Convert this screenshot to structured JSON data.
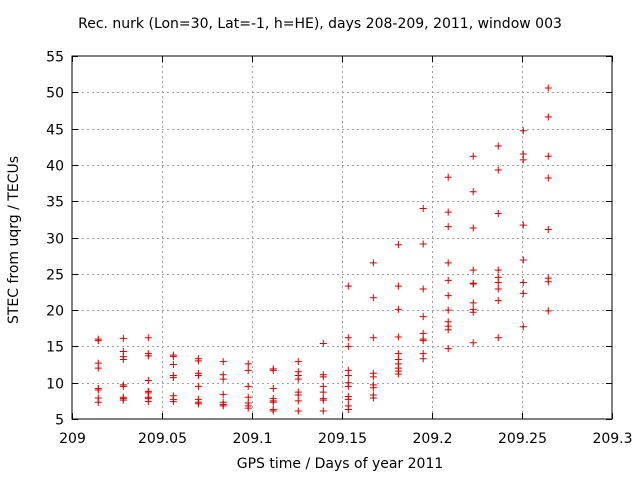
{
  "chart_data": {
    "type": "scatter",
    "title": "Rec. nurk (Lon=30, Lat=-1, h=HE), days 208-209, 2011, window 003",
    "xlabel": "GPS time / Days of year 2011",
    "ylabel": "STEC from uqrg / TECUs",
    "xlim": [
      209,
      209.3
    ],
    "ylim": [
      5,
      55
    ],
    "xticks": [
      "209",
      "209.05",
      "209.1",
      "209.15",
      "209.2",
      "209.25",
      "209.3"
    ],
    "xtick_values": [
      209,
      209.05,
      209.1,
      209.15,
      209.2,
      209.25,
      209.3
    ],
    "yticks": [
      "5",
      "10",
      "15",
      "20",
      "25",
      "30",
      "35",
      "40",
      "45",
      "50",
      "55"
    ],
    "ytick_values": [
      5,
      10,
      15,
      20,
      25,
      30,
      35,
      40,
      45,
      50,
      55
    ],
    "grid": true,
    "marker": "+",
    "color": "#d40000",
    "columns": [
      {
        "x": 209.0146,
        "y": [
          16.0,
          15.8,
          12.7,
          12.0,
          9.2,
          9.0,
          7.9,
          7.3
        ]
      },
      {
        "x": 209.0285,
        "y": [
          16.1,
          14.3,
          13.6,
          13.2,
          9.7,
          9.5,
          8.0,
          7.8,
          7.6
        ]
      },
      {
        "x": 209.0424,
        "y": [
          16.2,
          14.0,
          13.7,
          10.3,
          8.8,
          8.6,
          8.0,
          7.8,
          7.4
        ]
      },
      {
        "x": 209.0563,
        "y": [
          13.8,
          13.6,
          12.5,
          11.0,
          10.7,
          8.2,
          7.7,
          7.4
        ]
      },
      {
        "x": 209.0702,
        "y": [
          13.3,
          13.0,
          11.3,
          11.0,
          9.5,
          7.7,
          7.3,
          7.1
        ]
      },
      {
        "x": 209.084,
        "y": [
          12.9,
          11.1,
          10.5,
          8.4,
          7.3,
          7.0,
          6.8
        ]
      },
      {
        "x": 209.0979,
        "y": [
          12.6,
          11.7,
          9.5,
          8.0,
          7.2,
          6.8,
          6.5
        ]
      },
      {
        "x": 209.1118,
        "y": [
          11.9,
          11.7,
          9.2,
          7.8,
          7.5,
          7.3,
          6.3,
          6.1
        ]
      },
      {
        "x": 209.1257,
        "y": [
          12.9,
          11.5,
          11.0,
          10.5,
          8.7,
          8.3,
          7.5,
          6.1
        ]
      },
      {
        "x": 209.1396,
        "y": [
          15.4,
          11.1,
          10.8,
          9.5,
          8.7,
          7.8,
          7.6,
          6.1
        ]
      },
      {
        "x": 209.1535,
        "y": [
          23.3,
          16.2,
          15.0,
          11.7,
          11.0,
          10.0,
          9.5,
          8.1,
          7.7,
          6.8,
          6.3
        ]
      },
      {
        "x": 209.1674,
        "y": [
          26.5,
          21.7,
          16.2,
          11.3,
          10.8,
          9.7,
          9.3,
          8.3,
          7.9
        ]
      },
      {
        "x": 209.1813,
        "y": [
          29.0,
          23.3,
          20.1,
          16.3,
          14.0,
          13.2,
          12.6,
          12.0,
          11.6,
          11.2
        ]
      },
      {
        "x": 209.1951,
        "y": [
          34.0,
          29.1,
          22.9,
          19.1,
          16.8,
          16.0,
          15.8,
          14.0,
          13.3
        ]
      },
      {
        "x": 209.209,
        "y": [
          38.3,
          33.5,
          31.5,
          26.5,
          24.1,
          22.0,
          20.0,
          18.4,
          17.8,
          17.3,
          14.7
        ]
      },
      {
        "x": 209.2229,
        "y": [
          41.2,
          36.3,
          31.3,
          25.5,
          23.7,
          23.6,
          21.0,
          20.1,
          19.7,
          15.5
        ]
      },
      {
        "x": 209.2368,
        "y": [
          42.6,
          39.3,
          33.3,
          25.5,
          24.5,
          23.8,
          22.9,
          21.3,
          16.2
        ]
      },
      {
        "x": 209.2507,
        "y": [
          44.7,
          41.5,
          40.7,
          31.7,
          26.9,
          23.8,
          22.3,
          17.7
        ]
      },
      {
        "x": 209.2646,
        "y": [
          50.6,
          46.6,
          41.2,
          38.2,
          31.1,
          24.4,
          23.9,
          19.9
        ]
      }
    ]
  }
}
